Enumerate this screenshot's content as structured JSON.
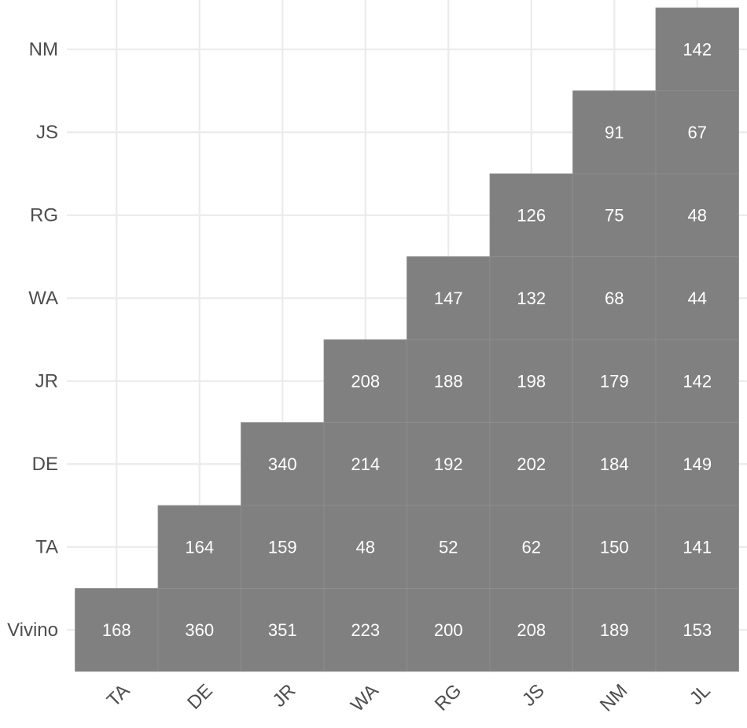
{
  "chart_data": {
    "type": "heatmap",
    "title": "",
    "xlabel": "",
    "ylabel": "",
    "x_categories": [
      "TA",
      "DE",
      "JR",
      "WA",
      "RG",
      "JS",
      "NM",
      "JL"
    ],
    "y_categories": [
      "Vivino",
      "TA",
      "DE",
      "JR",
      "WA",
      "RG",
      "JS",
      "NM"
    ],
    "cell_color": "#808080",
    "label_color": "#ffffff",
    "cells": [
      {
        "x": "TA",
        "y": "Vivino",
        "value": 168
      },
      {
        "x": "DE",
        "y": "Vivino",
        "value": 360
      },
      {
        "x": "JR",
        "y": "Vivino",
        "value": 351
      },
      {
        "x": "WA",
        "y": "Vivino",
        "value": 223
      },
      {
        "x": "RG",
        "y": "Vivino",
        "value": 200
      },
      {
        "x": "JS",
        "y": "Vivino",
        "value": 208
      },
      {
        "x": "NM",
        "y": "Vivino",
        "value": 189
      },
      {
        "x": "JL",
        "y": "Vivino",
        "value": 153
      },
      {
        "x": "DE",
        "y": "TA",
        "value": 164
      },
      {
        "x": "JR",
        "y": "TA",
        "value": 159
      },
      {
        "x": "WA",
        "y": "TA",
        "value": 48
      },
      {
        "x": "RG",
        "y": "TA",
        "value": 52
      },
      {
        "x": "JS",
        "y": "TA",
        "value": 62
      },
      {
        "x": "NM",
        "y": "TA",
        "value": 150
      },
      {
        "x": "JL",
        "y": "TA",
        "value": 141
      },
      {
        "x": "JR",
        "y": "DE",
        "value": 340
      },
      {
        "x": "WA",
        "y": "DE",
        "value": 214
      },
      {
        "x": "RG",
        "y": "DE",
        "value": 192
      },
      {
        "x": "JS",
        "y": "DE",
        "value": 202
      },
      {
        "x": "NM",
        "y": "DE",
        "value": 184
      },
      {
        "x": "JL",
        "y": "DE",
        "value": 149
      },
      {
        "x": "WA",
        "y": "JR",
        "value": 208
      },
      {
        "x": "RG",
        "y": "JR",
        "value": 188
      },
      {
        "x": "JS",
        "y": "JR",
        "value": 198
      },
      {
        "x": "NM",
        "y": "JR",
        "value": 179
      },
      {
        "x": "JL",
        "y": "JR",
        "value": 142
      },
      {
        "x": "RG",
        "y": "WA",
        "value": 147
      },
      {
        "x": "JS",
        "y": "WA",
        "value": 132
      },
      {
        "x": "NM",
        "y": "WA",
        "value": 68
      },
      {
        "x": "JL",
        "y": "WA",
        "value": 44
      },
      {
        "x": "JS",
        "y": "RG",
        "value": 126
      },
      {
        "x": "NM",
        "y": "RG",
        "value": 75
      },
      {
        "x": "JL",
        "y": "RG",
        "value": 48
      },
      {
        "x": "NM",
        "y": "JS",
        "value": 91
      },
      {
        "x": "JL",
        "y": "JS",
        "value": 67
      },
      {
        "x": "JL",
        "y": "NM",
        "value": 142
      }
    ]
  }
}
